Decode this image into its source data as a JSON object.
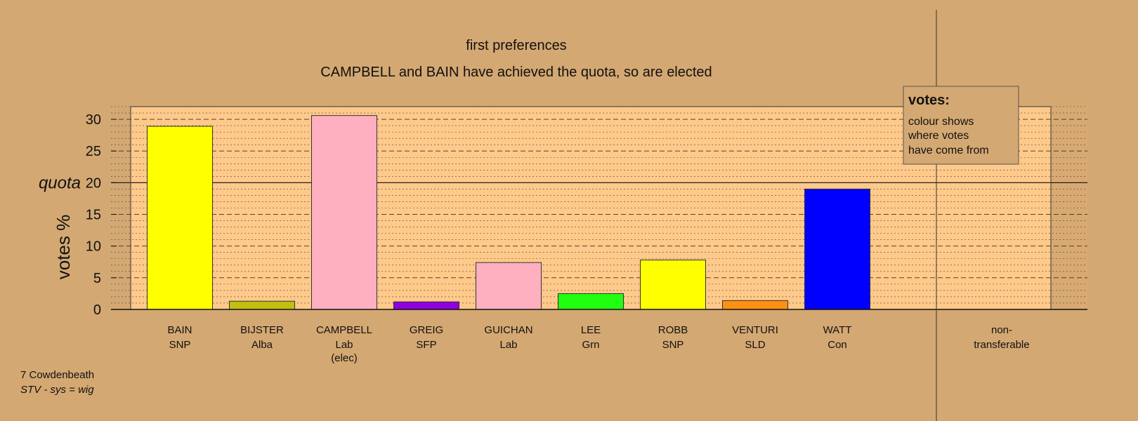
{
  "chart_data": {
    "type": "bar",
    "title": "first preferences",
    "subtitle": "CAMPBELL and BAIN have achieved the quota, so are elected",
    "ylabel": "votes %",
    "ylim": [
      0,
      32
    ],
    "yticks": [
      0,
      5,
      10,
      15,
      20,
      25,
      30
    ],
    "quota": 20,
    "quota_label": "quota",
    "categories": [
      {
        "name": "BAIN",
        "party": "SNP",
        "note": ""
      },
      {
        "name": "BIJSTER",
        "party": "Alba",
        "note": ""
      },
      {
        "name": "CAMPBELL",
        "party": "Lab",
        "note": "(elec)"
      },
      {
        "name": "GREIG",
        "party": "SFP",
        "note": ""
      },
      {
        "name": "GUICHAN",
        "party": "Lab",
        "note": ""
      },
      {
        "name": "LEE",
        "party": "Grn",
        "note": ""
      },
      {
        "name": "ROBB",
        "party": "SNP",
        "note": ""
      },
      {
        "name": "VENTURI",
        "party": "SLD",
        "note": ""
      },
      {
        "name": "WATT",
        "party": "Con",
        "note": ""
      }
    ],
    "values": [
      28.9,
      1.3,
      30.6,
      1.2,
      7.4,
      2.5,
      7.8,
      1.4,
      19.0
    ],
    "colors": [
      "#ffff00",
      "#c0c010",
      "#ffb0c0",
      "#9000e0",
      "#ffb0c0",
      "#20ff10",
      "#ffff00",
      "#ff9010",
      "#0000ff"
    ],
    "extra_category": {
      "line1": "non-",
      "line2": "transferable",
      "value": 0
    },
    "grid": true,
    "legend": {
      "position": "top-right",
      "title": "votes:",
      "lines": [
        "colour shows",
        "where votes",
        "have come from"
      ]
    }
  },
  "footer": {
    "constituency": "7 Cowdenbeath",
    "system": "STV - sys = wig"
  },
  "colors": {
    "background": "#d4a872",
    "plot_area": "#ffc98a",
    "plot_area_right": "#d8aa72"
  }
}
